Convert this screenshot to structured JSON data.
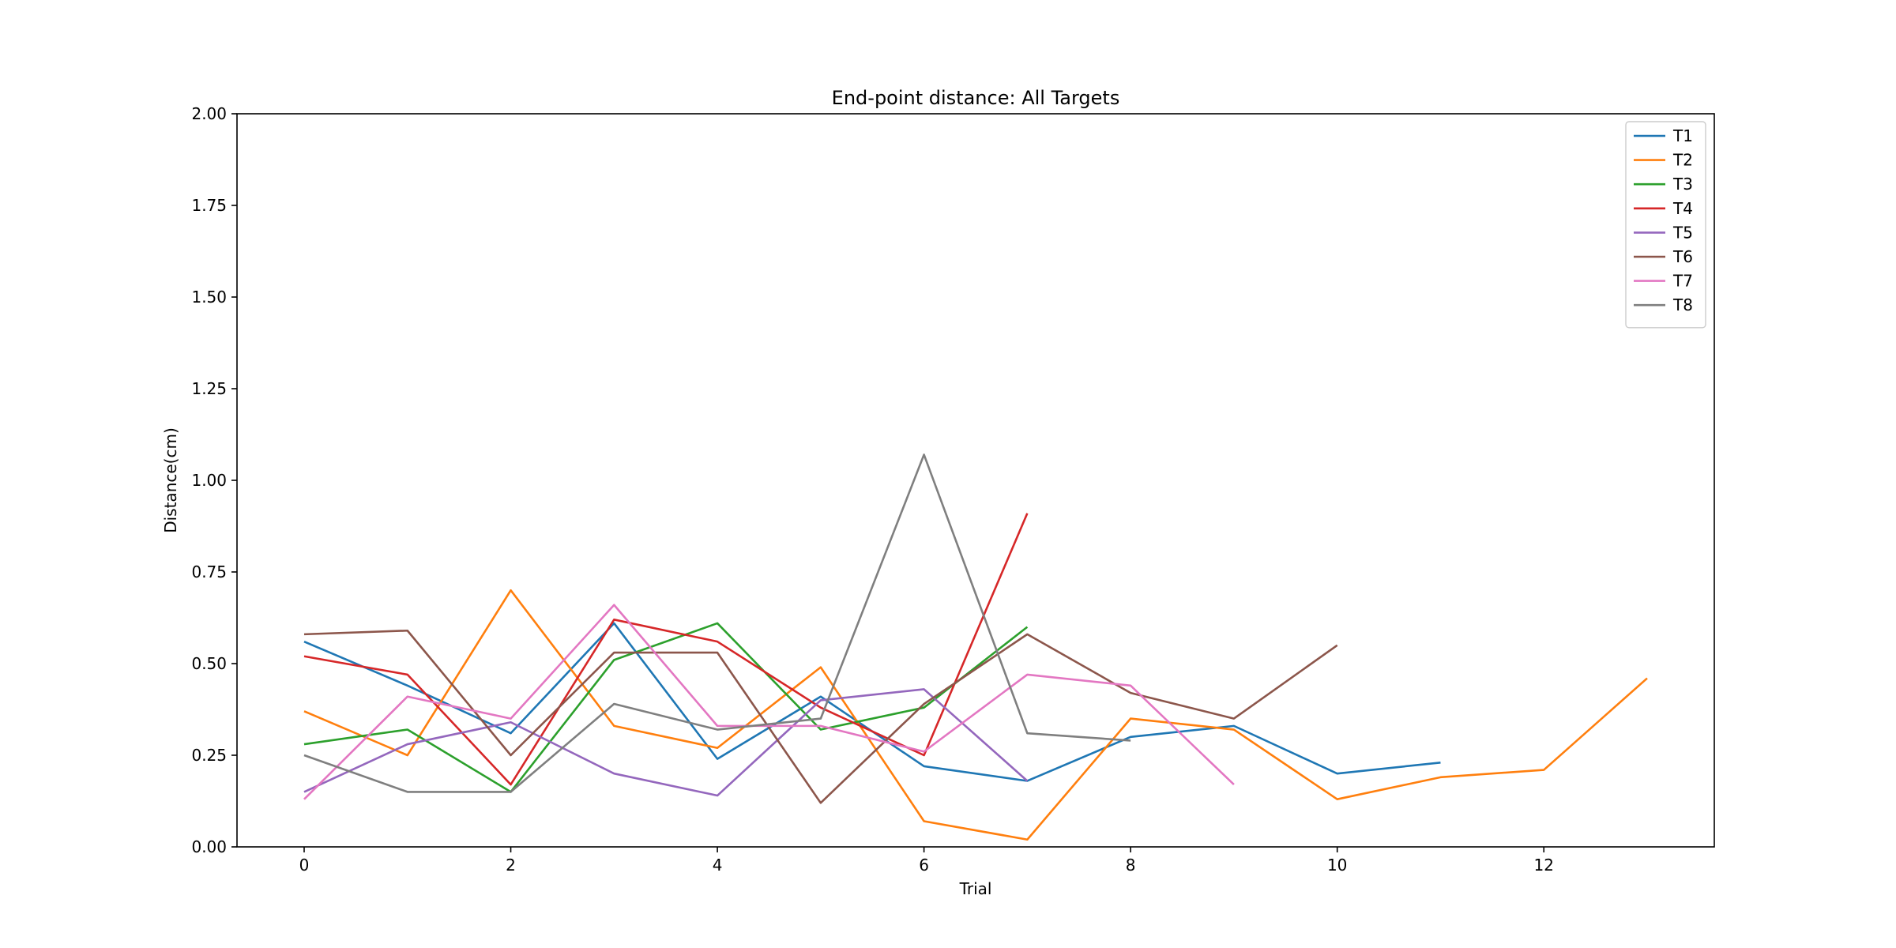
{
  "chart_data": {
    "type": "line",
    "title": "End-point distance: All Targets",
    "xlabel": "Trial",
    "ylabel": "Distance(cm)",
    "xlim": [
      -0.65,
      13.65
    ],
    "ylim": [
      0.0,
      2.0
    ],
    "xticks": [
      0,
      2,
      4,
      6,
      8,
      10,
      12
    ],
    "xtick_labels": [
      "0",
      "2",
      "4",
      "6",
      "8",
      "10",
      "12"
    ],
    "yticks": [
      0.0,
      0.25,
      0.5,
      0.75,
      1.0,
      1.25,
      1.5,
      1.75,
      2.0
    ],
    "ytick_labels": [
      "0.00",
      "0.25",
      "0.50",
      "0.75",
      "1.00",
      "1.25",
      "1.50",
      "1.75",
      "2.00"
    ],
    "grid": false,
    "legend_position": "top-right",
    "series": [
      {
        "name": "T1",
        "color": "#1f77b4",
        "values": [
          0.56,
          0.44,
          0.31,
          0.61,
          0.24,
          0.41,
          0.22,
          0.18,
          0.3,
          0.33,
          0.2,
          0.23
        ]
      },
      {
        "name": "T2",
        "color": "#ff7f0e",
        "values": [
          0.37,
          0.25,
          0.7,
          0.33,
          0.27,
          0.49,
          0.07,
          0.02,
          0.35,
          0.32,
          0.13,
          0.19,
          0.21,
          0.46
        ]
      },
      {
        "name": "T3",
        "color": "#2ca02c",
        "values": [
          0.28,
          0.32,
          0.15,
          0.51,
          0.61,
          0.32,
          0.38,
          0.6
        ]
      },
      {
        "name": "T4",
        "color": "#d62728",
        "values": [
          0.52,
          0.47,
          0.17,
          0.62,
          0.56,
          0.38,
          0.25,
          0.91
        ]
      },
      {
        "name": "T5",
        "color": "#9467bd",
        "values": [
          0.15,
          0.28,
          0.34,
          0.2,
          0.14,
          0.4,
          0.43,
          0.18
        ]
      },
      {
        "name": "T6",
        "color": "#8c564b",
        "values": [
          0.58,
          0.59,
          0.25,
          0.53,
          0.53,
          0.12,
          0.39,
          0.58,
          0.42,
          0.35,
          0.55
        ]
      },
      {
        "name": "T7",
        "color": "#e377c2",
        "values": [
          0.13,
          0.41,
          0.35,
          0.66,
          0.33,
          0.33,
          0.26,
          0.47,
          0.44,
          0.17
        ]
      },
      {
        "name": "T8",
        "color": "#7f7f7f",
        "values": [
          0.25,
          0.15,
          0.15,
          0.39,
          0.32,
          0.35,
          1.07,
          0.31,
          0.29
        ]
      }
    ]
  }
}
